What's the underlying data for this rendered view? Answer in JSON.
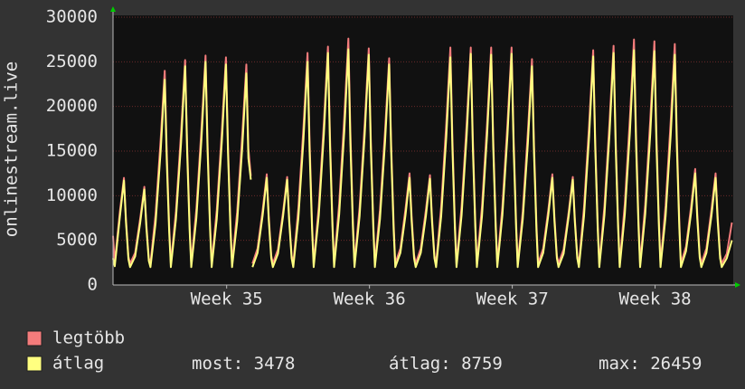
{
  "chart_data": {
    "type": "line",
    "y_label": "onlinestream.live",
    "xlim": [
      0,
      30.4
    ],
    "xticks": [
      {
        "value": 5.57,
        "label": "Week 35"
      },
      {
        "value": 12.57,
        "label": "Week 36"
      },
      {
        "value": 19.57,
        "label": "Week 37"
      },
      {
        "value": 26.57,
        "label": "Week 38"
      }
    ],
    "ylim": [
      0,
      30000
    ],
    "yticks": [
      0,
      5000,
      10000,
      15000,
      20000,
      25000,
      30000
    ],
    "grid": true,
    "x": [
      0,
      0.085,
      0.335,
      0.535,
      0.635,
      0.755,
      0.835,
      1.085,
      1.335,
      1.535,
      1.635,
      1.755,
      1.835,
      2.085,
      2.335,
      2.535,
      2.635,
      2.755,
      2.835,
      3.085,
      3.335,
      3.535,
      3.635,
      3.755,
      3.835,
      4.085,
      4.335,
      4.535,
      4.635,
      4.755,
      4.835,
      5.085,
      5.335,
      5.535,
      5.635,
      5.755,
      5.835,
      6.085,
      6.335,
      6.535,
      6.635,
      6.755,
      6.8,
      6.835,
      7.085,
      7.335,
      7.535,
      7.635,
      7.755,
      7.835,
      8.085,
      8.335,
      8.535,
      8.635,
      8.755,
      8.835,
      9.085,
      9.335,
      9.535,
      9.635,
      9.755,
      9.835,
      10.085,
      10.335,
      10.535,
      10.635,
      10.755,
      10.835,
      11.085,
      11.335,
      11.535,
      11.635,
      11.755,
      11.835,
      12.085,
      12.335,
      12.535,
      12.635,
      12.755,
      12.835,
      13.085,
      13.335,
      13.535,
      13.635,
      13.755,
      13.835,
      14.085,
      14.335,
      14.535,
      14.635,
      14.755,
      14.835,
      15.085,
      15.335,
      15.535,
      15.635,
      15.755,
      15.835,
      16.085,
      16.335,
      16.535,
      16.635,
      16.755,
      16.835,
      17.085,
      17.335,
      17.535,
      17.635,
      17.755,
      17.835,
      18.085,
      18.335,
      18.535,
      18.635,
      18.755,
      18.835,
      19.085,
      19.335,
      19.535,
      19.635,
      19.755,
      19.835,
      20.085,
      20.335,
      20.535,
      20.635,
      20.755,
      20.835,
      21.085,
      21.335,
      21.535,
      21.635,
      21.755,
      21.835,
      22.085,
      22.335,
      22.535,
      22.635,
      22.755,
      22.835,
      23.085,
      23.335,
      23.535,
      23.635,
      23.755,
      23.835,
      24.085,
      24.335,
      24.535,
      24.635,
      24.755,
      24.835,
      25.085,
      25.335,
      25.535,
      25.635,
      25.755,
      25.835,
      26.085,
      26.335,
      26.535,
      26.635,
      26.755,
      26.835,
      27.085,
      27.335,
      27.535,
      27.635,
      27.755,
      27.835,
      28.085,
      28.335,
      28.535,
      28.635,
      28.755,
      28.835,
      29.085,
      29.335,
      29.535,
      29.635,
      29.755,
      29.835,
      30.085,
      30.335
    ],
    "series": [
      {
        "name": "legtöbb",
        "color": "#f47c7c",
        "values": [
          5500,
          2500,
          8200,
          12000,
          7400,
          3200,
          2400,
          3600,
          7500,
          11000,
          6800,
          3000,
          2400,
          7900,
          16300,
          24000,
          14900,
          6500,
          2400,
          8300,
          17100,
          25200,
          15600,
          6800,
          2400,
          8500,
          17500,
          25700,
          15900,
          6900,
          2400,
          8400,
          17300,
          25500,
          15800,
          6900,
          2400,
          8200,
          16800,
          24700,
          15300,
          12200,
          null,
          2400,
          4100,
          8400,
          12400,
          7700,
          3300,
          2400,
          4000,
          8200,
          12100,
          7500,
          3300,
          2400,
          8600,
          17700,
          26000,
          16100,
          7000,
          2400,
          8800,
          18200,
          26700,
          16600,
          7200,
          2400,
          9100,
          18800,
          27600,
          17100,
          7500,
          2400,
          8700,
          18000,
          26500,
          16400,
          7200,
          2400,
          8400,
          17300,
          25400,
          15700,
          6900,
          2400,
          4100,
          8500,
          12500,
          7800,
          3400,
          2400,
          4100,
          8400,
          12300,
          7600,
          3300,
          2400,
          8800,
          18100,
          26600,
          16500,
          7200,
          2400,
          8800,
          18100,
          26600,
          16500,
          7200,
          2400,
          8800,
          18100,
          26600,
          16500,
          7200,
          2400,
          8800,
          18100,
          26600,
          16500,
          7200,
          2400,
          8300,
          17200,
          25300,
          15700,
          6800,
          2400,
          4100,
          8400,
          12400,
          7700,
          3300,
          2400,
          4000,
          8200,
          12100,
          7500,
          3300,
          2400,
          8700,
          17900,
          26300,
          16300,
          7100,
          2400,
          8800,
          18200,
          26800,
          16600,
          7200,
          2400,
          9100,
          18700,
          27500,
          17100,
          7400,
          2400,
          9000,
          18600,
          27300,
          16900,
          7400,
          2400,
          8900,
          18400,
          27000,
          16700,
          7300,
          2400,
          4300,
          8800,
          13000,
          8100,
          3500,
          2400,
          4100,
          8500,
          12500,
          7800,
          3400,
          2400,
          3500,
          7000
        ]
      },
      {
        "name": "átlag",
        "color": "#ffff80",
        "values": [
          3000,
          2100,
          7600,
          11700,
          7000,
          2900,
          2000,
          3200,
          7000,
          10700,
          6400,
          2700,
          2000,
          6900,
          15000,
          23000,
          13800,
          5800,
          2000,
          7400,
          15900,
          24500,
          14700,
          6100,
          2000,
          7500,
          16300,
          25000,
          15000,
          6300,
          2000,
          7400,
          16100,
          24700,
          14800,
          6200,
          2000,
          7100,
          15400,
          23700,
          14200,
          11800,
          null,
          2000,
          3600,
          7800,
          12000,
          7200,
          3000,
          2000,
          3500,
          7700,
          11800,
          7100,
          3000,
          2000,
          7500,
          16300,
          25000,
          15000,
          6300,
          2000,
          7800,
          16900,
          26000,
          15600,
          6500,
          2000,
          7900,
          17200,
          26400,
          15800,
          6600,
          2000,
          7700,
          16800,
          25800,
          15500,
          6500,
          2000,
          7400,
          16100,
          24700,
          14800,
          6200,
          2000,
          3600,
          7800,
          12000,
          7200,
          3000,
          2000,
          3600,
          7700,
          11900,
          7100,
          3000,
          2000,
          7700,
          16600,
          25500,
          15300,
          6400,
          2000,
          7800,
          16800,
          25900,
          15500,
          6500,
          2000,
          7700,
          16800,
          25800,
          15500,
          6500,
          2000,
          7800,
          16800,
          25900,
          15500,
          6500,
          2000,
          7400,
          15900,
          24500,
          14700,
          6100,
          2000,
          3600,
          7800,
          12000,
          7200,
          3000,
          2000,
          3500,
          7700,
          11800,
          7100,
          3000,
          2000,
          7700,
          16600,
          25600,
          15400,
          6400,
          2000,
          7800,
          16900,
          26000,
          15600,
          6500,
          2000,
          7900,
          17100,
          26300,
          15800,
          6600,
          2000,
          7900,
          17000,
          26200,
          15700,
          6600,
          2000,
          7700,
          16800,
          25800,
          15500,
          6500,
          2000,
          3800,
          8100,
          12500,
          7500,
          3100,
          2000,
          3600,
          7800,
          12000,
          7200,
          3000,
          2000,
          3000,
          5000
        ]
      }
    ],
    "stats": [
      {
        "label": "most:",
        "value": 3478
      },
      {
        "label": "átlag:",
        "value": 8759
      },
      {
        "label": "max:",
        "value": 26459
      }
    ]
  }
}
